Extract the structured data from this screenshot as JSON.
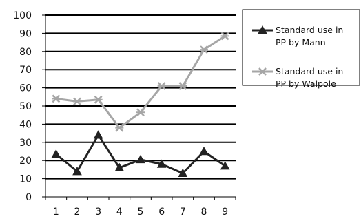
{
  "chart_data": {
    "type": "line",
    "x": [
      1,
      2,
      3,
      4,
      5,
      6,
      7,
      8,
      9
    ],
    "series": [
      {
        "name_lines": [
          "Standard use in",
          "PP by Mann"
        ],
        "values": [
          23.5,
          14,
          34,
          16,
          20.5,
          18,
          13,
          25,
          17
        ],
        "color": "#222222",
        "marker": "triangle"
      },
      {
        "name_lines": [
          "Standard use in",
          "PP by Walpole"
        ],
        "values": [
          54,
          52.5,
          53.5,
          38,
          46.5,
          61,
          61,
          81,
          88.5
        ],
        "color": "#a6a6a6",
        "marker": "star"
      }
    ],
    "ylim": [
      0,
      100
    ],
    "yticks": [
      0,
      10,
      20,
      30,
      40,
      50,
      60,
      70,
      80,
      90,
      100
    ],
    "grid": true,
    "legend_position": "right",
    "title": "",
    "xlabel": "",
    "ylabel": ""
  }
}
